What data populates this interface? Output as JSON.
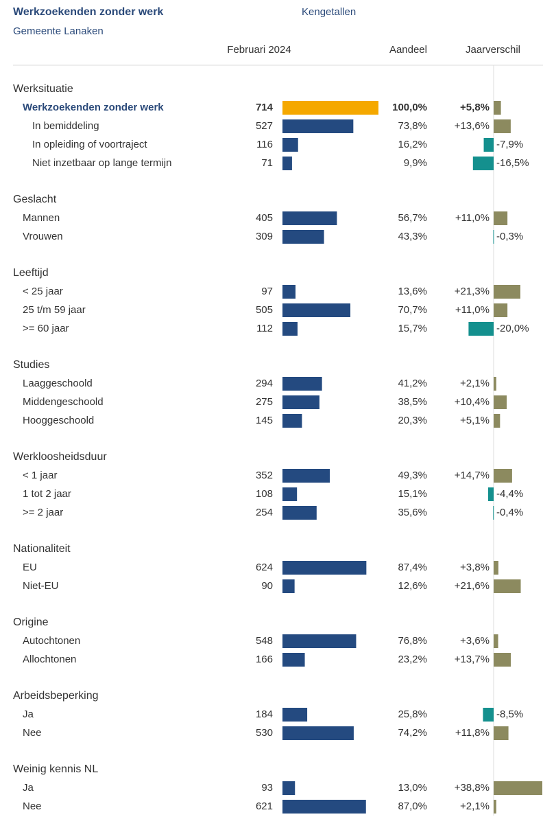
{
  "header": {
    "title": "Werkzoekenden zonder werk",
    "subtitle": "Gemeente Lanaken",
    "section": "Kengetallen"
  },
  "columns": [
    "Februari 2024",
    "Aandeel",
    "Jaarverschil"
  ],
  "groups": [
    {
      "name": "Werksituatie",
      "rows": [
        {
          "label": "Werkzoekenden zonder werk",
          "count": 714,
          "share": "100,0%",
          "change": {
            "value": 5.8,
            "label": "+5,8%"
          }
        },
        {
          "label": "In bemiddeling",
          "count": 527,
          "share": "73,8%",
          "change": {
            "value": 13.6,
            "label": "+13,6%"
          }
        },
        {
          "label": "In opleiding of voortraject",
          "count": 116,
          "share": "16,2%",
          "change": {
            "value": -7.9,
            "label": "-7,9%"
          }
        },
        {
          "label": "Niet inzetbaar op lange termijn",
          "count": 71,
          "share": "9,9%",
          "change": {
            "value": -16.5,
            "label": "-16,5%"
          }
        }
      ]
    },
    {
      "name": "Geslacht",
      "rows": [
        {
          "label": "Mannen",
          "count": 405,
          "share": "56,7%",
          "change": {
            "value": 11.0,
            "label": "+11,0%"
          }
        },
        {
          "label": "Vrouwen",
          "count": 309,
          "share": "43,3%",
          "change": {
            "value": -0.3,
            "label": "-0,3%"
          }
        }
      ]
    },
    {
      "name": "Leeftijd",
      "rows": [
        {
          "label": "< 25 jaar",
          "count": 97,
          "share": "13,6%",
          "change": {
            "value": 21.3,
            "label": "+21,3%"
          }
        },
        {
          "label": "25 t/m 59 jaar",
          "count": 505,
          "share": "70,7%",
          "change": {
            "value": 11.0,
            "label": "+11,0%"
          }
        },
        {
          "label": ">= 60 jaar",
          "count": 112,
          "share": "15,7%",
          "change": {
            "value": -20.0,
            "label": "-20,0%"
          }
        }
      ]
    },
    {
      "name": "Studies",
      "rows": [
        {
          "label": "Laaggeschoold",
          "count": 294,
          "share": "41,2%",
          "change": {
            "value": 2.1,
            "label": "+2,1%"
          }
        },
        {
          "label": "Middengeschoold",
          "count": 275,
          "share": "38,5%",
          "change": {
            "value": 10.4,
            "label": "+10,4%"
          }
        },
        {
          "label": "Hooggeschoold",
          "count": 145,
          "share": "20,3%",
          "change": {
            "value": 5.1,
            "label": "+5,1%"
          }
        }
      ]
    },
    {
      "name": "Werkloosheidsduur",
      "rows": [
        {
          "label": "< 1 jaar",
          "count": 352,
          "share": "49,3%",
          "change": {
            "value": 14.7,
            "label": "+14,7%"
          }
        },
        {
          "label": "1 tot 2 jaar",
          "count": 108,
          "share": "15,1%",
          "change": {
            "value": -4.4,
            "label": "-4,4%"
          }
        },
        {
          "label": ">= 2 jaar",
          "count": 254,
          "share": "35,6%",
          "change": {
            "value": -0.4,
            "label": "-0,4%"
          }
        }
      ]
    },
    {
      "name": "Nationaliteit",
      "rows": [
        {
          "label": "EU",
          "count": 624,
          "share": "87,4%",
          "change": {
            "value": 3.8,
            "label": "+3,8%"
          }
        },
        {
          "label": "Niet-EU",
          "count": 90,
          "share": "12,6%",
          "change": {
            "value": 21.6,
            "label": "+21,6%"
          }
        }
      ]
    },
    {
      "name": "Origine",
      "rows": [
        {
          "label": "Autochtonen",
          "count": 548,
          "share": "76,8%",
          "change": {
            "value": 3.6,
            "label": "+3,6%"
          }
        },
        {
          "label": "Allochtonen",
          "count": 166,
          "share": "23,2%",
          "change": {
            "value": 13.7,
            "label": "+13,7%"
          }
        }
      ]
    },
    {
      "name": "Arbeidsbeperking",
      "rows": [
        {
          "label": "Ja",
          "count": 184,
          "share": "25,8%",
          "change": {
            "value": -8.5,
            "label": "-8,5%"
          }
        },
        {
          "label": "Nee",
          "count": 530,
          "share": "74,2%",
          "change": {
            "value": 11.8,
            "label": "+11,8%"
          }
        }
      ]
    },
    {
      "name": "Weinig kennis NL",
      "rows": [
        {
          "label": "Ja",
          "count": 93,
          "share": "13,0%",
          "change": {
            "value": 38.8,
            "label": "+38,8%"
          }
        },
        {
          "label": "Nee",
          "count": 621,
          "share": "87,0%",
          "change": {
            "value": 2.1,
            "label": "+2,1%"
          }
        }
      ]
    }
  ]
}
